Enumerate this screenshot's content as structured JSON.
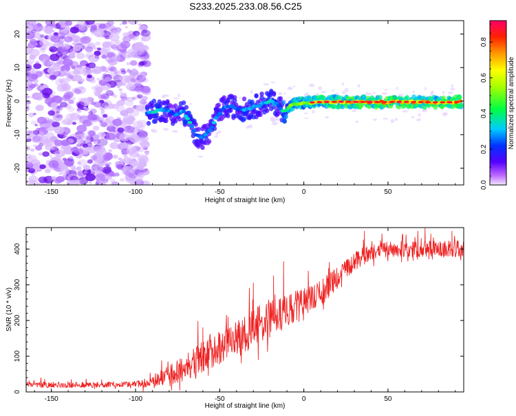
{
  "title": "S233.2025.233.08.56.C25",
  "chart_data": [
    {
      "type": "heatmap",
      "name": "spectrogram",
      "xlabel": "Height of straight line (km)",
      "ylabel": "Frequency (Hz)",
      "xlim": [
        -165,
        95
      ],
      "ylim": [
        -25,
        24
      ],
      "xticks": [
        -150,
        -100,
        -50,
        0,
        50
      ],
      "yticks": [
        -20,
        -10,
        0,
        10,
        20
      ],
      "noise_region_x": [
        -165,
        -93
      ],
      "trace": {
        "x": [
          -92,
          -88,
          -84,
          -80,
          -76,
          -72,
          -68,
          -64,
          -60,
          -56,
          -52,
          -48,
          -44,
          -40,
          -36,
          -32,
          -28,
          -24,
          -20,
          -18,
          -16,
          -14,
          -12,
          -10,
          -8,
          -5,
          0,
          10,
          20,
          30,
          40,
          50,
          60,
          70,
          80,
          90,
          94
        ],
        "f": [
          -3.5,
          -3,
          -2.5,
          -3,
          -4,
          -3,
          -6,
          -10,
          -11,
          -9,
          -5,
          -2,
          -1.5,
          -2,
          -2.5,
          -2,
          -1.5,
          -0.5,
          0,
          -0.5,
          -1,
          -2,
          -3,
          -2.5,
          -1.5,
          -0.8,
          -0.5,
          -0.3,
          -0.2,
          -0.2,
          -0.3,
          -0.3,
          -0.2,
          -0.3,
          -0.4,
          -0.3,
          -0.2
        ],
        "amplitude": [
          0.35,
          0.4,
          0.35,
          0.3,
          0.3,
          0.35,
          0.4,
          0.3,
          0.35,
          0.3,
          0.35,
          0.3,
          0.35,
          0.3,
          0.35,
          0.4,
          0.35,
          0.35,
          0.4,
          0.4,
          0.35,
          0.3,
          0.55,
          0.5,
          0.55,
          0.6,
          0.65,
          0.75,
          0.8,
          0.8,
          0.85,
          0.85,
          0.8,
          0.85,
          0.8,
          0.85,
          0.85
        ]
      },
      "colorbar": {
        "label": "Normalized spectral amplitude",
        "range": [
          0.0,
          0.92
        ],
        "ticks": [
          "0.0",
          "0.2",
          "0.4",
          "0.6",
          "0.8"
        ],
        "tick_values": [
          0.0,
          0.2,
          0.4,
          0.6,
          0.8
        ]
      }
    },
    {
      "type": "line",
      "name": "snr",
      "xlabel": "Height of straight line (km)",
      "ylabel": "SNR (10 * v/v)",
      "xlim": [
        -165,
        95
      ],
      "ylim": [
        0,
        460
      ],
      "xticks": [
        -150,
        -100,
        -50,
        0,
        50
      ],
      "yticks": [
        0,
        100,
        200,
        300,
        400
      ],
      "color": "#ee2222",
      "envelope": {
        "x": [
          -165,
          -140,
          -120,
          -100,
          -90,
          -80,
          -70,
          -60,
          -50,
          -40,
          -30,
          -20,
          -10,
          0,
          10,
          20,
          30,
          40,
          50,
          60,
          70,
          80,
          90,
          95
        ],
        "y": [
          20,
          20,
          20,
          22,
          28,
          45,
          70,
          100,
          125,
          150,
          180,
          205,
          225,
          245,
          275,
          320,
          365,
          390,
          400,
          400,
          398,
          400,
          400,
          400
        ]
      },
      "noise_amplitude": {
        "x": [
          -165,
          -100,
          -90,
          -80,
          -60,
          -40,
          -20,
          0,
          20,
          40,
          60,
          95
        ],
        "y": [
          8,
          8,
          15,
          30,
          45,
          50,
          55,
          45,
          30,
          22,
          22,
          24
        ]
      },
      "spikes": [
        {
          "x": -12,
          "y": 365
        },
        {
          "x": -18,
          "y": 325
        },
        {
          "x": 36,
          "y": 450
        },
        {
          "x": 72,
          "y": 458
        },
        {
          "x": 88,
          "y": 450
        },
        {
          "x": -30,
          "y": 305
        },
        {
          "x": -60,
          "y": 180
        },
        {
          "x": -45,
          "y": 210
        }
      ]
    }
  ]
}
